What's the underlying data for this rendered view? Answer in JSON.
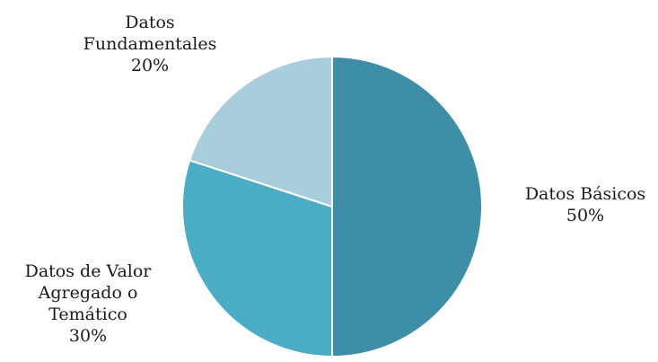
{
  "chart_data": {
    "type": "pie",
    "title": "",
    "slices": [
      {
        "label_lines": [
          "Datos Básicos"
        ],
        "value_label": "50%",
        "value": 50,
        "color": "#3d8ea6"
      },
      {
        "label_lines": [
          "Datos de Valor",
          "Agregado o",
          "Temático"
        ],
        "value_label": "30%",
        "value": 30,
        "color": "#4aacc5"
      },
      {
        "label_lines": [
          "Datos",
          "Fundamentales"
        ],
        "value_label": "20%",
        "value": 20,
        "color": "#a8cddc"
      }
    ],
    "start_angle_deg": 0,
    "direction": "clockwise",
    "legend": "none",
    "slice_border_color": "#ffffff"
  }
}
